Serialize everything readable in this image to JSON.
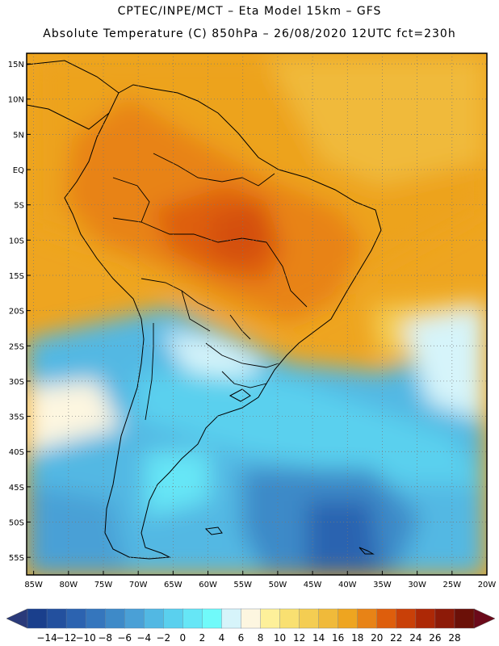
{
  "header": {
    "line1": "CPTEC/INPE/MCT –  Eta Model 15km – GFS",
    "line2": "Absolute Temperature (C) 850hPa – 26/08/2020 12UTC fct=230h"
  },
  "map": {
    "lat_labels": [
      "15N",
      "10N",
      "5N",
      "EQ",
      "5S",
      "10S",
      "15S",
      "20S",
      "25S",
      "30S",
      "35S",
      "40S",
      "45S",
      "50S",
      "55S"
    ],
    "lon_labels": [
      "85W",
      "80W",
      "75W",
      "70W",
      "65W",
      "60W",
      "55W",
      "50W",
      "45W",
      "40W",
      "35W",
      "30W",
      "25W",
      "20W"
    ],
    "lat_values": [
      15,
      10,
      5,
      0,
      -5,
      -10,
      -15,
      -20,
      -25,
      -30,
      -35,
      -40,
      -45,
      -50,
      -55
    ],
    "lon_values": [
      -85,
      -80,
      -75,
      -70,
      -65,
      -60,
      -55,
      -50,
      -45,
      -40,
      -35,
      -30,
      -25,
      -20
    ],
    "extent": {
      "lon_min": -86,
      "lon_max": -20,
      "lat_min": -57.5,
      "lat_max": 16.5
    }
  },
  "colorbar": {
    "labels": [
      "-14",
      "-12",
      "-10",
      "-8",
      "-6",
      "-4",
      "-2",
      "0",
      "2",
      "4",
      "6",
      "8",
      "10",
      "12",
      "14",
      "16",
      "18",
      "20",
      "22",
      "24",
      "26",
      "28"
    ],
    "colors": [
      "#1a3f8c",
      "#23509e",
      "#2c63b0",
      "#3576bd",
      "#3e8ac8",
      "#4aa0d6",
      "#52b8e3",
      "#5ad0ee",
      "#66e6f6",
      "#70fafa",
      "#d6f4fa",
      "#fdf6e0",
      "#fdf09a",
      "#f9e071",
      "#f4cd52",
      "#f0ba3a",
      "#eea520",
      "#e88316",
      "#de5e0c",
      "#c94008",
      "#ad2806",
      "#8d1a08",
      "#6b1008"
    ],
    "left_arrow": "#2a3a7a",
    "right_arrow": "#6b0a1a"
  }
}
